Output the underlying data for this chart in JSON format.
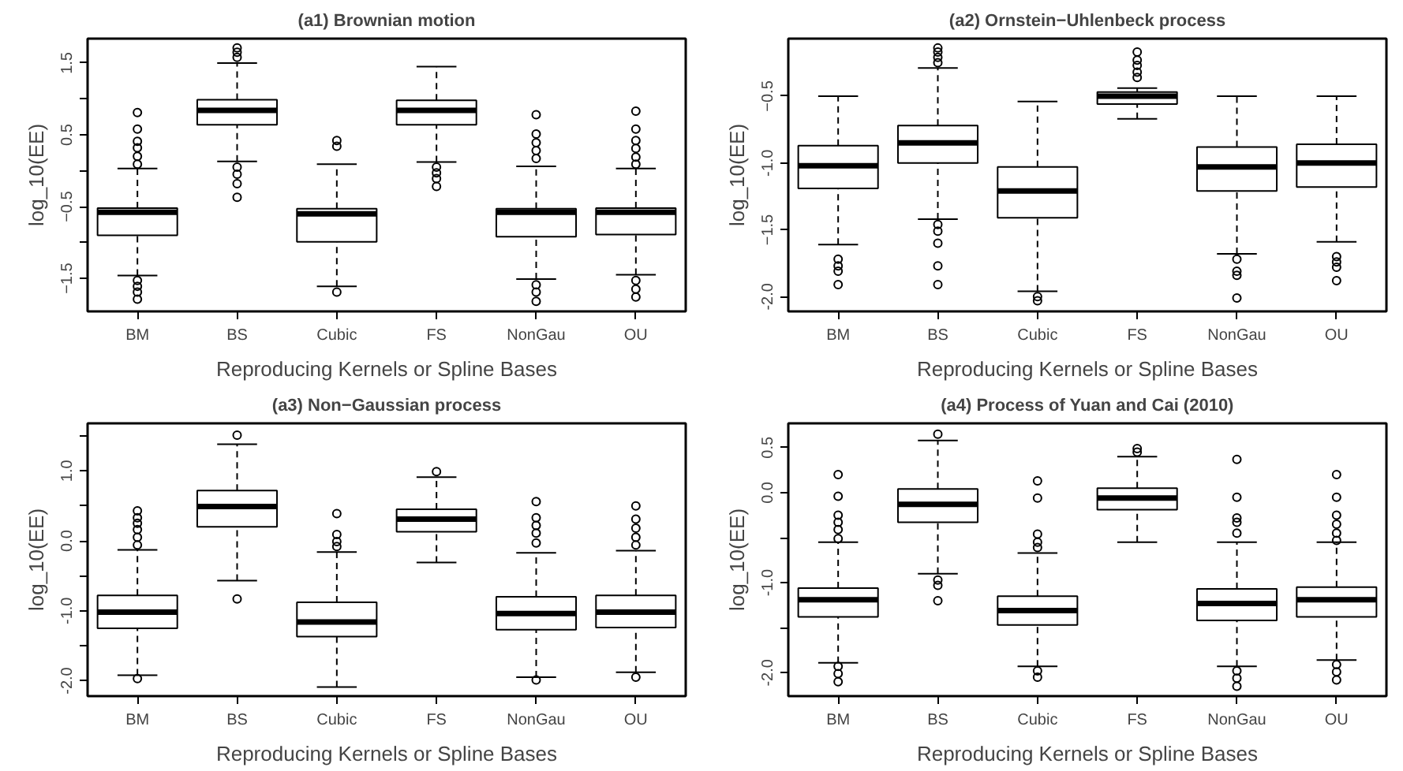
{
  "chart_data": [
    {
      "type": "box",
      "title": "(a1) Brownian motion",
      "xlabel": "Reproducing Kernels or Spline Bases",
      "ylabel": "log_10(EE)",
      "grid": false,
      "categories": [
        "BM",
        "BS",
        "Cubic",
        "FS",
        "NonGau",
        "OU"
      ],
      "ylim": [
        -1.96,
        1.84
      ],
      "yticks": [
        -1.5,
        {
          "value": -1.0,
          "label": null
        },
        -0.5,
        {
          "value": 0.0,
          "label": null
        },
        0.5,
        {
          "value": 1.0,
          "label": null
        },
        1.5
      ],
      "boxes": [
        {
          "low": -1.46,
          "q1": -0.9,
          "median": -0.58,
          "q3": -0.52,
          "high": 0.03,
          "outliers": [
            0.81,
            0.58,
            0.41,
            0.32,
            0.2,
            0.09,
            -1.53,
            -1.61,
            -1.69,
            -1.79
          ]
        },
        {
          "low": 0.13,
          "q1": 0.64,
          "median": 0.84,
          "q3": 0.99,
          "high": 1.5,
          "outliers": [
            1.71,
            1.65,
            1.58,
            0.05,
            -0.05,
            -0.18,
            -0.37
          ]
        },
        {
          "low": -1.61,
          "q1": -0.99,
          "median": -0.6,
          "q3": -0.53,
          "high": 0.09,
          "outliers": [
            0.42,
            0.34,
            -1.69
          ]
        },
        {
          "low": 0.12,
          "q1": 0.64,
          "median": 0.84,
          "q3": 0.98,
          "high": 1.45,
          "outliers": [
            0.05,
            -0.03,
            -0.11,
            -0.22
          ]
        },
        {
          "low": -1.51,
          "q1": -0.92,
          "median": -0.58,
          "q3": -0.53,
          "high": 0.06,
          "outliers": [
            0.78,
            0.51,
            0.39,
            0.28,
            0.17,
            -1.59,
            -1.69,
            -1.82
          ]
        },
        {
          "low": -1.45,
          "q1": -0.89,
          "median": -0.58,
          "q3": -0.52,
          "high": 0.03,
          "outliers": [
            0.83,
            0.58,
            0.42,
            0.31,
            0.19,
            0.09,
            -1.53,
            -1.65,
            -1.76
          ]
        }
      ]
    },
    {
      "type": "box",
      "title": "(a2) Ornstein−Uhlenbeck process",
      "xlabel": "Reproducing Kernels or Spline Bases",
      "ylabel": "log_10(EE)",
      "grid": false,
      "categories": [
        "BM",
        "BS",
        "Cubic",
        "FS",
        "NonGau",
        "OU"
      ],
      "ylim": [
        -2.11,
        -0.07
      ],
      "yticks": [
        {
          "value": -2.0,
          "label": "-2.0"
        },
        -1.5,
        {
          "value": -1.0,
          "label": "-1.0"
        },
        -0.5
      ],
      "boxes": [
        {
          "low": -1.61,
          "q1": -1.19,
          "median": -1.02,
          "q3": -0.87,
          "high": -0.5,
          "outliers": [
            -1.72,
            -1.77,
            -1.81,
            -1.91
          ]
        },
        {
          "low": -1.42,
          "q1": -1.0,
          "median": -0.85,
          "q3": -0.72,
          "high": -0.29,
          "outliers": [
            -0.14,
            -0.17,
            -0.21,
            -0.25,
            -1.46,
            -1.51,
            -1.6,
            -1.77,
            -1.91
          ]
        },
        {
          "low": -1.96,
          "q1": -1.41,
          "median": -1.21,
          "q3": -1.03,
          "high": -0.54,
          "outliers": [
            -2.0,
            -2.03
          ]
        },
        {
          "low": -0.67,
          "q1": -0.56,
          "median": -0.5,
          "q3": -0.47,
          "high": -0.44,
          "outliers": [
            -0.17,
            -0.23,
            -0.27,
            -0.32,
            -0.36
          ]
        },
        {
          "low": -1.68,
          "q1": -1.21,
          "median": -1.03,
          "q3": -0.88,
          "high": -0.5,
          "outliers": [
            -1.72,
            -1.81,
            -1.84,
            -2.01
          ]
        },
        {
          "low": -1.59,
          "q1": -1.18,
          "median": -1.0,
          "q3": -0.86,
          "high": -0.5,
          "outliers": [
            -1.7,
            -1.74,
            -1.78,
            -1.88
          ]
        }
      ]
    },
    {
      "type": "box",
      "title": "(a3) Non−Gaussian process",
      "xlabel": "Reproducing Kernels or Spline Bases",
      "ylabel": "log_10(EE)",
      "grid": false,
      "categories": [
        "BM",
        "BS",
        "Cubic",
        "FS",
        "NonGau",
        "OU"
      ],
      "ylim": [
        -2.22,
        1.68
      ],
      "yticks": [
        {
          "value": -2.0,
          "label": "-2.0"
        },
        {
          "value": -1.5,
          "label": null
        },
        {
          "value": -1.0,
          "label": "-1.0"
        },
        {
          "value": -0.5,
          "label": null
        },
        {
          "value": 0.0,
          "label": "0.0"
        },
        {
          "value": 0.5,
          "label": null
        },
        {
          "value": 1.0,
          "label": "1.0"
        },
        {
          "value": 1.5,
          "label": null
        }
      ],
      "boxes": [
        {
          "low": -1.92,
          "q1": -1.25,
          "median": -1.02,
          "q3": -0.78,
          "high": -0.13,
          "outliers": [
            0.43,
            0.33,
            0.25,
            0.16,
            0.05,
            -0.06,
            -1.97
          ]
        },
        {
          "low": -0.57,
          "q1": 0.2,
          "median": 0.49,
          "q3": 0.72,
          "high": 1.38,
          "outliers": [
            1.51,
            -0.83
          ]
        },
        {
          "low": -2.09,
          "q1": -1.37,
          "median": -1.16,
          "q3": -0.88,
          "high": -0.16,
          "outliers": [
            0.39,
            0.09,
            -0.01,
            -0.08
          ]
        },
        {
          "low": -0.31,
          "q1": 0.13,
          "median": 0.31,
          "q3": 0.45,
          "high": 0.91,
          "outliers": [
            0.99
          ]
        },
        {
          "low": -1.95,
          "q1": -1.27,
          "median": -1.04,
          "q3": -0.8,
          "high": -0.17,
          "outliers": [
            0.56,
            0.33,
            0.22,
            0.11,
            -0.03,
            -1.99
          ]
        },
        {
          "low": -1.88,
          "q1": -1.24,
          "median": -1.02,
          "q3": -0.78,
          "high": -0.14,
          "outliers": [
            0.5,
            0.31,
            0.18,
            0.05,
            -0.06,
            -1.95
          ]
        }
      ]
    },
    {
      "type": "box",
      "title": "(a4) Process of Yuan and Cai (2010)",
      "xlabel": "Reproducing Kernels or Spline Bases",
      "ylabel": "log_10(EE)",
      "grid": false,
      "categories": [
        "BM",
        "BS",
        "Cubic",
        "FS",
        "NonGau",
        "OU"
      ],
      "ylim": [
        -2.26,
        0.77
      ],
      "yticks": [
        {
          "value": -2.0,
          "label": "-2.0"
        },
        {
          "value": -1.5,
          "label": null
        },
        {
          "value": -1.0,
          "label": "-1.0"
        },
        {
          "value": -0.5,
          "label": null
        },
        {
          "value": 0.0,
          "label": "0.0"
        },
        0.5
      ],
      "boxes": [
        {
          "low": -1.89,
          "q1": -1.38,
          "median": -1.19,
          "q3": -1.06,
          "high": -0.55,
          "outliers": [
            0.2,
            -0.04,
            -0.25,
            -0.33,
            -0.41,
            -0.51,
            -1.93,
            -2.01,
            -2.1
          ]
        },
        {
          "low": -0.9,
          "q1": -0.33,
          "median": -0.13,
          "q3": 0.04,
          "high": 0.58,
          "outliers": [
            0.65,
            -0.97,
            -1.03,
            -1.2
          ]
        },
        {
          "low": -1.93,
          "q1": -1.47,
          "median": -1.31,
          "q3": -1.15,
          "high": -0.67,
          "outliers": [
            0.13,
            -0.06,
            -0.46,
            -0.55,
            -0.61,
            -1.98,
            -2.05
          ]
        },
        {
          "low": -0.55,
          "q1": -0.19,
          "median": -0.06,
          "q3": 0.05,
          "high": 0.4,
          "outliers": [
            0.49,
            0.45
          ]
        },
        {
          "low": -1.93,
          "q1": -1.42,
          "median": -1.23,
          "q3": -1.07,
          "high": -0.55,
          "outliers": [
            0.37,
            -0.05,
            -0.28,
            -0.33,
            -0.45,
            -1.98,
            -2.06,
            -2.15
          ]
        },
        {
          "low": -1.86,
          "q1": -1.38,
          "median": -1.19,
          "q3": -1.05,
          "high": -0.55,
          "outliers": [
            0.2,
            -0.05,
            -0.25,
            -0.35,
            -0.45,
            -0.53,
            -1.91,
            -1.99,
            -2.08
          ]
        }
      ]
    }
  ]
}
